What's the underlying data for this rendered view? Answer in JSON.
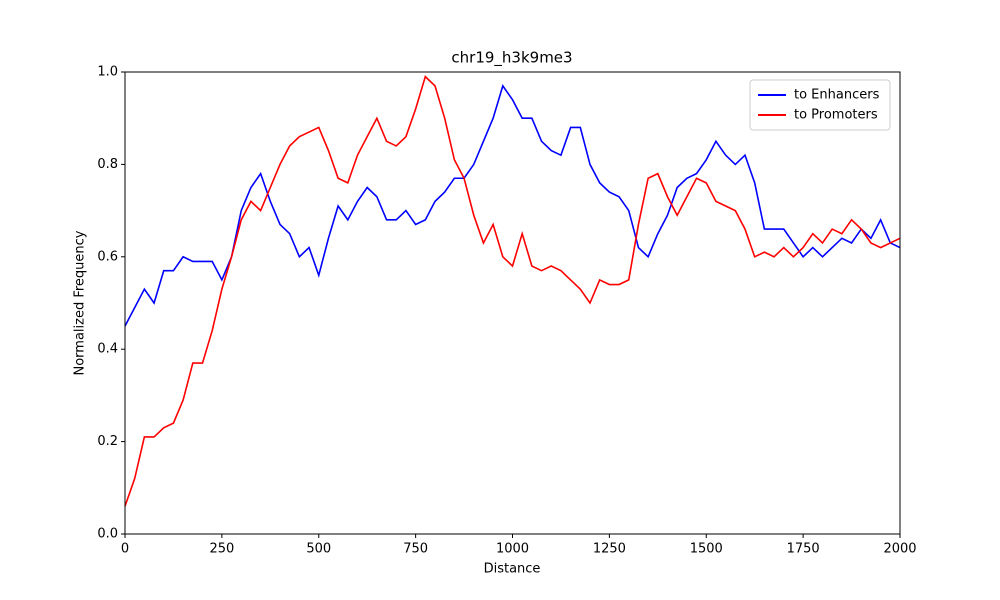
{
  "chart_data": {
    "type": "line",
    "title": "chr19_h3k9me3",
    "x_label": "Distance",
    "y_label": "Normalized Frequency",
    "x": [
      0,
      25,
      50,
      75,
      100,
      125,
      150,
      175,
      200,
      225,
      250,
      275,
      300,
      325,
      350,
      375,
      400,
      425,
      450,
      475,
      500,
      525,
      550,
      575,
      600,
      625,
      650,
      675,
      700,
      725,
      750,
      775,
      800,
      825,
      850,
      875,
      900,
      925,
      950,
      975,
      1000,
      1025,
      1050,
      1075,
      1100,
      1125,
      1150,
      1175,
      1200,
      1225,
      1250,
      1275,
      1300,
      1325,
      1350,
      1375,
      1400,
      1425,
      1450,
      1475,
      1500,
      1525,
      1550,
      1575,
      1600,
      1625,
      1650,
      1675,
      1700,
      1725,
      1750,
      1775,
      1800,
      1825,
      1850,
      1875,
      1900,
      1925,
      1950,
      1975,
      2000
    ],
    "series": [
      {
        "name": "to Enhancers",
        "color": "#0000ff",
        "values": [
          0.45,
          0.49,
          0.53,
          0.5,
          0.57,
          0.57,
          0.6,
          0.59,
          0.59,
          0.59,
          0.55,
          0.6,
          0.7,
          0.75,
          0.78,
          0.72,
          0.67,
          0.65,
          0.6,
          0.62,
          0.56,
          0.64,
          0.71,
          0.68,
          0.72,
          0.75,
          0.73,
          0.68,
          0.68,
          0.7,
          0.67,
          0.68,
          0.72,
          0.74,
          0.77,
          0.77,
          0.8,
          0.85,
          0.9,
          0.97,
          0.94,
          0.9,
          0.9,
          0.85,
          0.83,
          0.82,
          0.88,
          0.88,
          0.8,
          0.76,
          0.74,
          0.73,
          0.7,
          0.62,
          0.6,
          0.65,
          0.69,
          0.75,
          0.77,
          0.78,
          0.81,
          0.85,
          0.82,
          0.8,
          0.82,
          0.76,
          0.66,
          0.66,
          0.66,
          0.63,
          0.6,
          0.62,
          0.6,
          0.62,
          0.64,
          0.63,
          0.66,
          0.64,
          0.68,
          0.63,
          0.62
        ]
      },
      {
        "name": "to Promoters",
        "color": "#ff0000",
        "values": [
          0.06,
          0.12,
          0.21,
          0.21,
          0.23,
          0.24,
          0.29,
          0.37,
          0.37,
          0.44,
          0.53,
          0.6,
          0.68,
          0.72,
          0.7,
          0.75,
          0.8,
          0.84,
          0.86,
          0.87,
          0.88,
          0.83,
          0.77,
          0.76,
          0.82,
          0.86,
          0.9,
          0.85,
          0.84,
          0.86,
          0.92,
          0.99,
          0.97,
          0.9,
          0.81,
          0.77,
          0.69,
          0.63,
          0.67,
          0.6,
          0.58,
          0.65,
          0.58,
          0.57,
          0.58,
          0.57,
          0.55,
          0.53,
          0.5,
          0.55,
          0.54,
          0.54,
          0.55,
          0.67,
          0.77,
          0.78,
          0.73,
          0.69,
          0.73,
          0.77,
          0.76,
          0.72,
          0.71,
          0.7,
          0.66,
          0.6,
          0.61,
          0.6,
          0.62,
          0.6,
          0.62,
          0.65,
          0.63,
          0.66,
          0.65,
          0.68,
          0.66,
          0.63,
          0.62,
          0.63,
          0.64
        ]
      }
    ],
    "xlim": [
      0,
      2000
    ],
    "xticks": [
      0,
      250,
      500,
      750,
      1000,
      1250,
      1500,
      1750,
      2000
    ],
    "ylim": [
      0,
      1
    ],
    "yticks": [
      {
        "value": 0,
        "label": "0.0"
      },
      0.2,
      0.4,
      0.6,
      0.8,
      {
        "value": 1,
        "label": "1.0"
      }
    ],
    "legend": "upper-right",
    "grid": false
  }
}
